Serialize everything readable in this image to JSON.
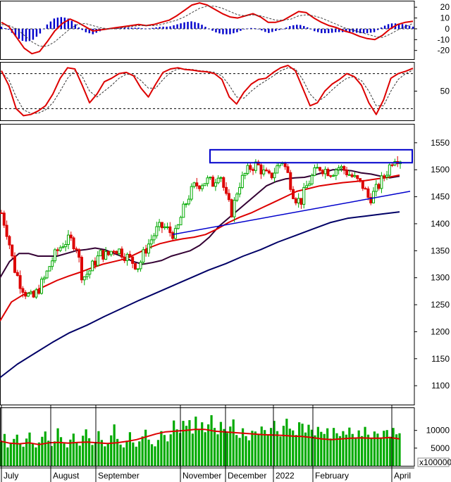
{
  "chart_data": [
    {
      "panel": "macd",
      "type": "line",
      "y_ticks": [
        "20",
        "10",
        "0",
        "-10",
        "-20"
      ],
      "ylim": [
        -28,
        26
      ],
      "series": [
        {
          "role": "macd-line",
          "color": "#dd0000",
          "values": [
            6,
            2,
            -8,
            -18,
            -23,
            -21,
            -12,
            -2,
            5,
            9,
            6,
            2,
            -2,
            -1,
            0,
            1,
            2,
            3,
            4,
            3,
            4,
            6,
            8,
            12,
            17,
            22,
            24,
            22,
            18,
            14,
            11,
            10,
            12,
            14,
            11,
            6,
            6,
            8,
            12,
            16,
            15,
            10,
            6,
            3,
            1,
            -2,
            -4,
            -7,
            -9,
            -10,
            -6,
            0,
            4,
            6,
            7
          ]
        },
        {
          "role": "signal-line",
          "color": "#444444",
          "values": [
            4,
            3,
            0,
            -6,
            -12,
            -16,
            -16,
            -12,
            -6,
            0,
            4,
            5,
            3,
            1,
            0,
            0,
            1,
            2,
            3,
            3,
            3,
            4,
            6,
            8,
            11,
            15,
            19,
            21,
            21,
            19,
            16,
            13,
            12,
            13,
            12,
            10,
            8,
            8,
            9,
            12,
            13,
            12,
            10,
            7,
            4,
            1,
            -1,
            -3,
            -5,
            -7,
            -8,
            -5,
            -1,
            2,
            5
          ]
        },
        {
          "role": "histogram",
          "color": "#0000cc",
          "values": [
            2,
            -1,
            -8,
            -12,
            -11,
            -5,
            4,
            10,
            11,
            9,
            2,
            -3,
            -5,
            -2,
            0,
            1,
            1,
            1,
            1,
            0,
            1,
            2,
            2,
            4,
            6,
            7,
            5,
            1,
            -3,
            -5,
            -5,
            -3,
            0,
            1,
            -1,
            -4,
            -2,
            0,
            3,
            4,
            2,
            -2,
            -4,
            -4,
            -3,
            -3,
            -3,
            -4,
            -4,
            -3,
            2,
            5,
            5,
            4,
            2
          ]
        }
      ]
    },
    {
      "panel": "stochastic",
      "type": "line",
      "y_ticks": [
        "50"
      ],
      "ylim": [
        0,
        100
      ],
      "reference_lines": [
        80,
        20
      ],
      "series": [
        {
          "role": "%K",
          "color": "#dd0000",
          "values": [
            85,
            60,
            20,
            8,
            10,
            16,
            25,
            45,
            72,
            90,
            88,
            60,
            30,
            45,
            66,
            72,
            80,
            82,
            76,
            55,
            40,
            62,
            82,
            88,
            90,
            87,
            86,
            84,
            83,
            80,
            70,
            40,
            28,
            48,
            62,
            70,
            72,
            82,
            90,
            94,
            85,
            55,
            25,
            30,
            50,
            62,
            70,
            80,
            75,
            60,
            30,
            10,
            35,
            72,
            80,
            84,
            89
          ]
        },
        {
          "role": "%D",
          "color": "#333333",
          "values": [
            82,
            70,
            40,
            18,
            12,
            12,
            18,
            30,
            50,
            72,
            85,
            75,
            50,
            40,
            50,
            60,
            72,
            79,
            78,
            68,
            55,
            55,
            70,
            82,
            88,
            88,
            87,
            85,
            84,
            82,
            76,
            60,
            40,
            38,
            50,
            60,
            68,
            76,
            85,
            90,
            88,
            70,
            45,
            32,
            40,
            52,
            63,
            72,
            75,
            68,
            50,
            25,
            25,
            50,
            70,
            80,
            86
          ]
        }
      ]
    },
    {
      "panel": "price",
      "type": "candlestick",
      "y_ticks": [
        "1550",
        "1500",
        "1450",
        "1400",
        "1350",
        "1300",
        "1250",
        "1200",
        "1150",
        "1100"
      ],
      "ylim": [
        1065,
        1585
      ],
      "close": [
        1420,
        1380,
        1320,
        1290,
        1270,
        1260,
        1280,
        1300,
        1330,
        1350,
        1365,
        1370,
        1360,
        1300,
        1310,
        1330,
        1345,
        1340,
        1355,
        1350,
        1340,
        1330,
        1320,
        1350,
        1370,
        1390,
        1395,
        1385,
        1380,
        1420,
        1450,
        1470,
        1475,
        1480,
        1475,
        1500,
        1450,
        1420,
        1470,
        1490,
        1505,
        1510,
        1495,
        1485,
        1500,
        1520,
        1490,
        1450,
        1440,
        1470,
        1490,
        1505,
        1500,
        1495,
        1505,
        1500,
        1490,
        1480,
        1470,
        1445,
        1460,
        1480,
        1500,
        1525,
        1520
      ],
      "ma_series": [
        {
          "role": "ma-short",
          "color": "#330033",
          "values": [
            1300,
            1330,
            1345,
            1345,
            1340,
            1340,
            1340,
            1345,
            1350,
            1352,
            1355,
            1352,
            1345,
            1338,
            1330,
            1325,
            1328,
            1332,
            1340,
            1345,
            1350,
            1360,
            1375,
            1395,
            1410,
            1425,
            1440,
            1455,
            1470,
            1478,
            1483,
            1485,
            1486,
            1490,
            1495,
            1500,
            1500,
            1498,
            1494,
            1492,
            1488,
            1485,
            1488
          ]
        },
        {
          "role": "ma-mid",
          "color": "#dd0000",
          "values": [
            1220,
            1255,
            1268,
            1275,
            1285,
            1295,
            1303,
            1310,
            1318,
            1325,
            1330,
            1335,
            1345,
            1355,
            1363,
            1368,
            1372,
            1375,
            1380,
            1390,
            1402,
            1412,
            1420,
            1430,
            1440,
            1450,
            1460,
            1465,
            1470,
            1473,
            1476,
            1478,
            1480,
            1483,
            1486,
            1490
          ]
        },
        {
          "role": "ma-long",
          "color": "#000066",
          "values": [
            1115,
            1140,
            1160,
            1180,
            1198,
            1212,
            1228,
            1243,
            1258,
            1272,
            1286,
            1300,
            1314,
            1326,
            1340,
            1352,
            1366,
            1378,
            1390,
            1402,
            1410,
            1414,
            1418,
            1422
          ]
        }
      ],
      "annotations": [
        {
          "type": "trendline",
          "color": "#0000cc",
          "from": 1380,
          "to": 1460
        },
        {
          "type": "resistance-box",
          "color": "#0000cc",
          "low": 1513,
          "high": 1537
        }
      ]
    },
    {
      "panel": "volume",
      "type": "bar",
      "unit_label": "x100000",
      "y_ticks": [
        "10000",
        "5000"
      ],
      "ylim": [
        0,
        16500
      ],
      "values": [
        6800,
        9000,
        5200,
        6400,
        7600,
        8800,
        6100,
        5400,
        7700,
        9400,
        6200,
        5200,
        6600,
        8200,
        9700,
        7100,
        5600,
        6900,
        10600,
        8100,
        6300,
        5200,
        7400,
        9100,
        6700,
        5700,
        8500,
        10300,
        7800,
        5900,
        6700,
        9800,
        7300,
        5500,
        6300,
        8600,
        11700,
        7600,
        6000,
        5200,
        7100,
        9500,
        6600,
        5400,
        6900,
        8300,
        10200,
        7400,
        6100,
        5500,
        7300,
        9800,
        8700,
        6900,
        8900,
        12800,
        10300,
        9300,
        12700,
        11300,
        12900,
        9100,
        13900,
        10100,
        12300,
        9500,
        11700,
        14300,
        10700,
        8900,
        12400,
        10400,
        9300,
        11100,
        13100,
        8700,
        7900,
        10600,
        8400,
        7200,
        9900,
        9700,
        8900,
        11100,
        10100,
        8600,
        10700,
        12700,
        9800,
        8300,
        11300,
        13300,
        10500,
        10000,
        8700,
        12300,
        11900,
        9400,
        11600,
        10200,
        8600,
        11000,
        9600,
        9000,
        10600,
        7700,
        10700,
        9200,
        8400,
        9800,
        8800,
        10800,
        9000,
        7700,
        10000,
        8400,
        11000,
        8800,
        7800,
        9700,
        9100,
        8000,
        9900,
        10100,
        8200,
        10700,
        8900,
        9200
      ],
      "ma_series": [
        {
          "role": "volume-ma",
          "color": "#dd0000",
          "values": [
            7000,
            6400,
            6200,
            6500,
            6000,
            6500,
            6600,
            6400,
            6600,
            6700,
            6500,
            6300,
            6500,
            6900,
            7400,
            8200,
            9000,
            9600,
            9800,
            10000,
            10300,
            10300,
            9800,
            9600,
            9400,
            9200,
            9000,
            8800,
            8700,
            8600,
            8400,
            8300,
            8000,
            7600,
            7400,
            7600,
            7800,
            7900,
            7800,
            7800,
            8000,
            7600
          ]
        }
      ]
    }
  ],
  "x_axis": {
    "months": [
      "July",
      "August",
      "September",
      "November",
      "December",
      "2022",
      "February",
      "April"
    ]
  }
}
